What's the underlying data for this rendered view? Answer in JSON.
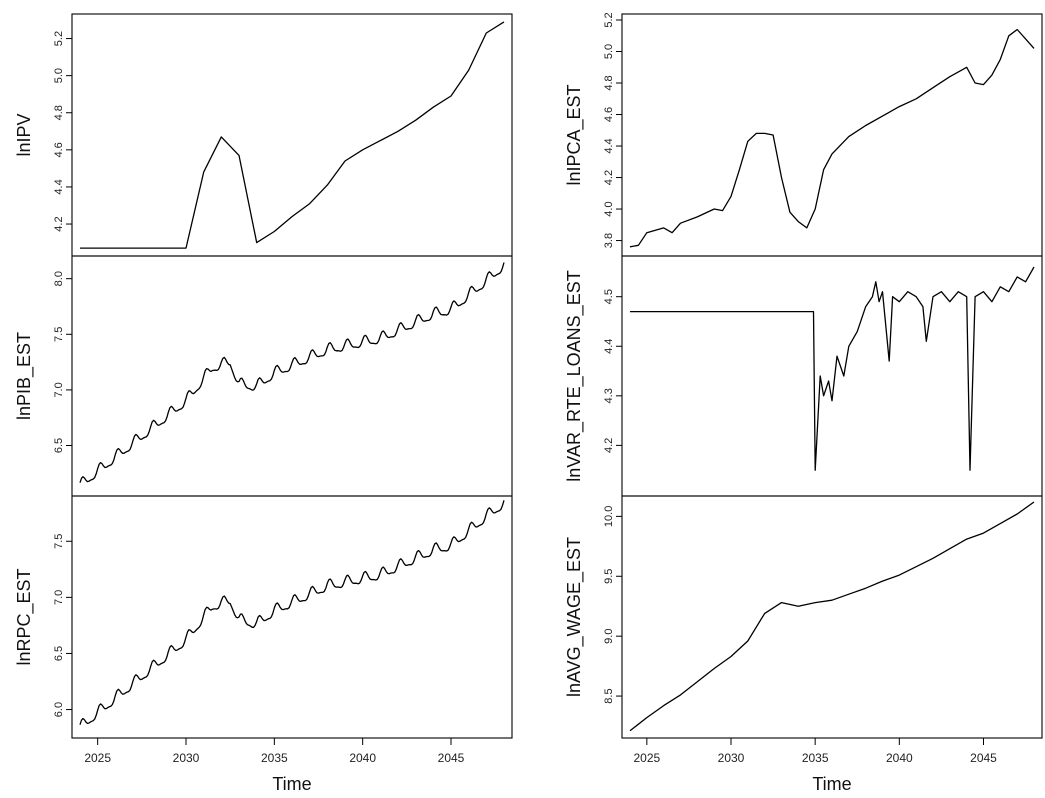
{
  "chart_data": [
    {
      "type": "line",
      "ylabel": "lnIPV",
      "xlim": [
        2024,
        2048
      ],
      "ylim": [
        4.06,
        5.3
      ],
      "yticks": [
        4.2,
        4.4,
        4.6,
        4.8,
        5.0,
        5.2
      ],
      "x": [
        2024,
        2030,
        2031,
        2032,
        2033,
        2034,
        2035,
        2036,
        2037,
        2038,
        2039,
        2040,
        2041,
        2042,
        2043,
        2044,
        2045,
        2046,
        2047,
        2048
      ],
      "y": [
        4.07,
        4.07,
        4.48,
        4.67,
        4.57,
        4.1,
        4.16,
        4.24,
        4.31,
        4.41,
        4.54,
        4.6,
        4.65,
        4.7,
        4.76,
        4.83,
        4.89,
        5.03,
        5.23,
        5.29
      ]
    },
    {
      "type": "line",
      "ylabel": "lnIPCA_EST",
      "xlim": [
        2024,
        2048
      ],
      "ylim": [
        3.74,
        5.2
      ],
      "yticks": [
        3.8,
        4.0,
        4.2,
        4.4,
        4.6,
        4.8,
        5.0,
        5.2
      ],
      "x": [
        2024,
        2024.5,
        2025,
        2026,
        2026.5,
        2027,
        2028,
        2029,
        2029.5,
        2030,
        2030.5,
        2031,
        2031.5,
        2032,
        2032.5,
        2033,
        2033.5,
        2034,
        2034.5,
        2035,
        2035.5,
        2036,
        2037,
        2038,
        2039,
        2040,
        2041,
        2042,
        2043,
        2044,
        2044.5,
        2045,
        2045.5,
        2046,
        2046.5,
        2047,
        2047.5,
        2048
      ],
      "y": [
        3.76,
        3.77,
        3.85,
        3.88,
        3.85,
        3.91,
        3.95,
        4.0,
        3.99,
        4.08,
        4.25,
        4.43,
        4.48,
        4.48,
        4.47,
        4.2,
        3.98,
        3.92,
        3.88,
        4.0,
        4.25,
        4.35,
        4.46,
        4.53,
        4.59,
        4.65,
        4.7,
        4.77,
        4.84,
        4.9,
        4.8,
        4.79,
        4.85,
        4.95,
        5.1,
        5.14,
        5.08,
        5.02
      ]
    },
    {
      "type": "line",
      "ylabel": "lnPIB_EST",
      "xlim": [
        2024,
        2048
      ],
      "ylim": [
        6.1,
        8.15
      ],
      "yticks": [
        6.5,
        7.0,
        7.5,
        8.0
      ],
      "start": 2024,
      "end": 2048,
      "anchors": [
        [
          2024,
          6.14
        ],
        [
          2030,
          6.9
        ],
        [
          2031.5,
          7.2
        ],
        [
          2032.5,
          7.25
        ],
        [
          2033,
          7.05
        ],
        [
          2034,
          7.03
        ],
        [
          2035,
          7.15
        ],
        [
          2038,
          7.36
        ],
        [
          2041,
          7.46
        ],
        [
          2044,
          7.68
        ],
        [
          2045,
          7.72
        ],
        [
          2047,
          7.98
        ],
        [
          2048,
          8.12
        ]
      ],
      "seasonal_amplitude": 0.045
    },
    {
      "type": "line",
      "ylabel": "lnVAR_RTE_LOANS_EST",
      "xlim": [
        2024,
        2048
      ],
      "ylim": [
        4.11,
        4.57
      ],
      "yticks": [
        4.2,
        4.3,
        4.4,
        4.5
      ],
      "x": [
        2024,
        2034.9,
        2035,
        2035.3,
        2035.5,
        2035.8,
        2036,
        2036.3,
        2036.7,
        2037,
        2037.5,
        2038,
        2038.4,
        2038.6,
        2038.8,
        2039,
        2039.4,
        2039.6,
        2040,
        2040.5,
        2041,
        2041.4,
        2041.6,
        2042,
        2042.5,
        2043,
        2043.5,
        2044,
        2044.2,
        2044.5,
        2045,
        2045.5,
        2046,
        2046.5,
        2047,
        2047.5,
        2048
      ],
      "y": [
        4.47,
        4.47,
        4.15,
        4.34,
        4.3,
        4.33,
        4.29,
        4.38,
        4.34,
        4.4,
        4.43,
        4.48,
        4.5,
        4.53,
        4.49,
        4.51,
        4.37,
        4.5,
        4.49,
        4.51,
        4.5,
        4.48,
        4.41,
        4.5,
        4.51,
        4.49,
        4.51,
        4.5,
        4.15,
        4.5,
        4.51,
        4.49,
        4.52,
        4.51,
        4.54,
        4.53,
        4.56
      ]
    },
    {
      "type": "line",
      "ylabel": "lnRPC_EST",
      "xlim": [
        2024,
        2048
      ],
      "ylim": [
        5.8,
        7.85
      ],
      "yticks": [
        6.0,
        6.5,
        7.0,
        7.5
      ],
      "start": 2024,
      "end": 2048,
      "anchors": [
        [
          2024,
          5.84
        ],
        [
          2030,
          6.62
        ],
        [
          2031.5,
          6.92
        ],
        [
          2032.5,
          6.97
        ],
        [
          2033,
          6.8
        ],
        [
          2034,
          6.76
        ],
        [
          2035,
          6.88
        ],
        [
          2038,
          7.1
        ],
        [
          2041,
          7.2
        ],
        [
          2044,
          7.42
        ],
        [
          2045,
          7.46
        ],
        [
          2047,
          7.72
        ],
        [
          2048,
          7.84
        ]
      ],
      "seasonal_amplitude": 0.045
    },
    {
      "type": "line",
      "ylabel": "lnAVG_WAGE_EST",
      "xlim": [
        2024,
        2048
      ],
      "ylim": [
        8.2,
        10.12
      ],
      "yticks": [
        8.5,
        9.0,
        9.5,
        10.0
      ],
      "x": [
        2024,
        2025,
        2026,
        2027,
        2028,
        2029,
        2030,
        2031,
        2032,
        2033,
        2034,
        2035,
        2036,
        2037,
        2038,
        2039,
        2040,
        2041,
        2042,
        2043,
        2044,
        2045,
        2046,
        2047,
        2048
      ],
      "y": [
        8.21,
        8.32,
        8.42,
        8.51,
        8.62,
        8.73,
        8.83,
        8.96,
        9.19,
        9.28,
        9.25,
        9.28,
        9.3,
        9.35,
        9.4,
        9.46,
        9.51,
        9.58,
        9.65,
        9.73,
        9.81,
        9.86,
        9.94,
        10.02,
        10.12
      ]
    }
  ],
  "xaxis": {
    "label": "Time",
    "ticks": [
      2025,
      2030,
      2035,
      2040,
      2045
    ]
  }
}
